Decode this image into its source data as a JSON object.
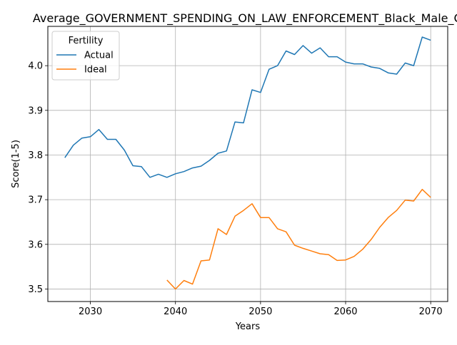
{
  "chart_data": {
    "type": "line",
    "title": "Average_GOVERNMENT_SPENDING_ON_LAW_ENFORCEMENT_Black_Male_Q",
    "xlabel": "Years",
    "ylabel": "Score(1-5)",
    "xlim": [
      2025,
      2072
    ],
    "ylim": [
      3.472,
      4.088
    ],
    "x_ticks": [
      2030,
      2040,
      2050,
      2060,
      2070
    ],
    "y_ticks": [
      3.5,
      3.6,
      3.7,
      3.8,
      3.9,
      4.0
    ],
    "x_tick_labels": [
      "2030",
      "2040",
      "2050",
      "2060",
      "2070"
    ],
    "y_tick_labels": [
      "3.5",
      "3.6",
      "3.7",
      "3.8",
      "3.9",
      "4.0"
    ],
    "grid": true,
    "legend": {
      "title": "Fertility",
      "placement": "top-left"
    },
    "series": [
      {
        "name": "Actual",
        "color": "#1f77b4",
        "x": [
          2027,
          2028,
          2029,
          2030,
          2031,
          2032,
          2033,
          2034,
          2035,
          2036,
          2037,
          2038,
          2039,
          2040,
          2041,
          2042,
          2043,
          2044,
          2045,
          2046,
          2047,
          2048,
          2049,
          2050,
          2051,
          2052,
          2053,
          2054,
          2055,
          2056,
          2057,
          2058,
          2059,
          2060,
          2061,
          2062,
          2063,
          2064,
          2065,
          2066,
          2067,
          2068,
          2069,
          2070
        ],
        "values": [
          3.794,
          3.822,
          3.838,
          3.841,
          3.857,
          3.835,
          3.835,
          3.811,
          3.776,
          3.774,
          3.75,
          3.757,
          3.75,
          3.758,
          3.763,
          3.771,
          3.775,
          3.788,
          3.804,
          3.809,
          3.874,
          3.872,
          3.946,
          3.94,
          3.992,
          4.0,
          4.033,
          4.025,
          4.045,
          4.028,
          4.04,
          4.02,
          4.02,
          4.008,
          4.004,
          4.004,
          3.997,
          3.994,
          3.984,
          3.981,
          4.006,
          4.0,
          4.064,
          4.057
        ]
      },
      {
        "name": "Ideal",
        "color": "#ff7f0e",
        "x": [
          2039,
          2040,
          2041,
          2042,
          2043,
          2044,
          2045,
          2046,
          2047,
          2048,
          2049,
          2050,
          2051,
          2052,
          2053,
          2054,
          2055,
          2056,
          2057,
          2058,
          2059,
          2060,
          2061,
          2062,
          2063,
          2064,
          2065,
          2066,
          2067,
          2068,
          2069,
          2070
        ],
        "values": [
          3.52,
          3.5,
          3.519,
          3.511,
          3.563,
          3.565,
          3.635,
          3.622,
          3.663,
          3.676,
          3.691,
          3.66,
          3.66,
          3.635,
          3.628,
          3.598,
          3.591,
          3.585,
          3.579,
          3.577,
          3.564,
          3.565,
          3.573,
          3.589,
          3.611,
          3.638,
          3.66,
          3.676,
          3.699,
          3.697,
          3.723,
          3.705
        ]
      }
    ]
  }
}
